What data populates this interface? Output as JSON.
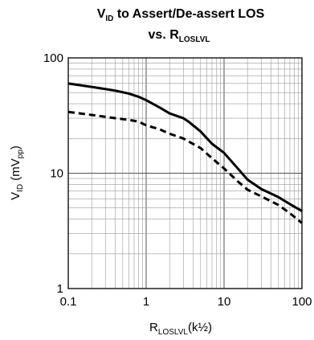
{
  "chart_data": {
    "type": "line",
    "title_lines": [
      {
        "base": "V",
        "sub": "ID",
        "after": " to Assert/De-assert LOS"
      },
      {
        "base": "vs. R",
        "sub": "LOSLVL",
        "after": ""
      }
    ],
    "xlabel": {
      "base": "R",
      "sub": "LOSLVL",
      "after": "(k½)"
    },
    "ylabel": {
      "base": "V",
      "sub": "ID",
      "mid": " (mV",
      "sub2": "pp",
      "after": ")"
    },
    "x_scale": "log",
    "y_scale": "log",
    "xlim": [
      0.1,
      100
    ],
    "ylim": [
      1,
      100
    ],
    "x_ticks": [
      {
        "value": 0.1,
        "label": "0.1"
      },
      {
        "value": 1,
        "label": "1"
      },
      {
        "value": 10,
        "label": "10"
      },
      {
        "value": 100,
        "label": "100"
      }
    ],
    "y_ticks": [
      {
        "value": 1,
        "label": "1"
      },
      {
        "value": 10,
        "label": "10"
      },
      {
        "value": 100,
        "label": "100"
      }
    ],
    "grid": true,
    "series": [
      {
        "style": "solid",
        "color": "#000000",
        "points": [
          [
            0.1,
            60
          ],
          [
            0.2,
            56
          ],
          [
            0.4,
            52
          ],
          [
            0.6,
            49
          ],
          [
            0.8,
            46
          ],
          [
            1,
            43
          ],
          [
            1.5,
            37
          ],
          [
            2,
            33
          ],
          [
            3,
            30
          ],
          [
            3.5,
            28
          ],
          [
            5,
            23
          ],
          [
            7,
            18
          ],
          [
            10,
            15
          ],
          [
            15,
            11
          ],
          [
            20,
            8.8
          ],
          [
            30,
            7.3
          ],
          [
            50,
            6.2
          ],
          [
            70,
            5.4
          ],
          [
            100,
            4.7
          ]
        ]
      },
      {
        "style": "dashed",
        "color": "#000000",
        "points": [
          [
            0.1,
            34
          ],
          [
            0.2,
            32
          ],
          [
            0.4,
            30
          ],
          [
            0.6,
            29
          ],
          [
            0.8,
            28
          ],
          [
            1,
            26
          ],
          [
            1.5,
            24
          ],
          [
            2,
            22
          ],
          [
            3,
            20
          ],
          [
            5,
            16.5
          ],
          [
            7,
            13.5
          ],
          [
            10,
            11
          ],
          [
            15,
            8.5
          ],
          [
            20,
            7.2
          ],
          [
            30,
            6.3
          ],
          [
            50,
            5.3
          ],
          [
            70,
            4.5
          ],
          [
            100,
            3.7
          ]
        ]
      }
    ]
  }
}
